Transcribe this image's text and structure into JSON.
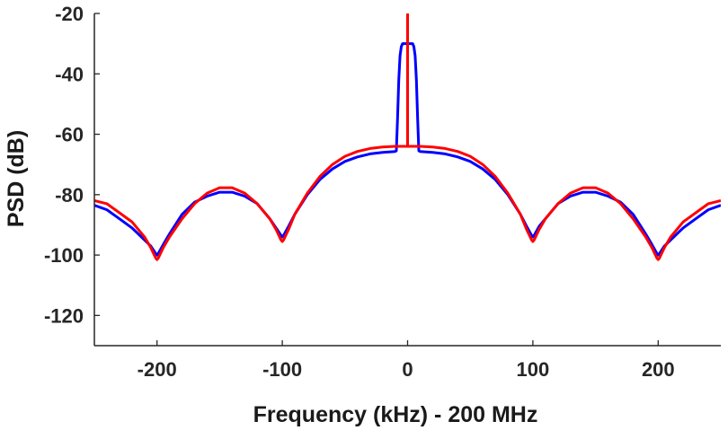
{
  "chart_data": {
    "type": "line",
    "title": "",
    "xlabel": "Frequency (kHz) - 200 MHz",
    "ylabel": "PSD (dB)",
    "xlim": [
      -250,
      250
    ],
    "ylim": [
      -130,
      -20
    ],
    "xticks": [
      -200,
      -100,
      0,
      100,
      200
    ],
    "yticks": [
      -20,
      -40,
      -60,
      -80,
      -100,
      -120
    ],
    "xtick_labels": [
      "-200",
      "-100",
      "0",
      "100",
      "200"
    ],
    "ytick_labels": [
      "-20",
      "-40",
      "-60",
      "-80",
      "-100",
      "-120"
    ],
    "grid": false,
    "series": [
      {
        "name": "red",
        "color": "#ff0000",
        "x": [
          -250,
          -240,
          -230,
          -220,
          -210,
          -205,
          -201,
          -200,
          -199,
          -195,
          -190,
          -180,
          -170,
          -160,
          -150,
          -140,
          -130,
          -120,
          -110,
          -105,
          -101,
          -100,
          -99,
          -95,
          -90,
          -80,
          -70,
          -60,
          -50,
          -40,
          -30,
          -20,
          -10,
          0,
          10,
          20,
          30,
          40,
          50,
          60,
          70,
          80,
          90,
          95,
          99,
          100,
          101,
          105,
          110,
          120,
          130,
          140,
          150,
          160,
          170,
          180,
          190,
          195,
          199,
          200,
          201,
          205,
          210,
          220,
          230,
          240,
          250
        ],
        "values": [
          -82,
          -83,
          -86,
          -89,
          -94,
          -97.5,
          -101,
          -101.5,
          -101,
          -97.5,
          -94,
          -88,
          -83,
          -79.5,
          -77.7,
          -77.7,
          -79.5,
          -83,
          -88,
          -91.5,
          -95,
          -95.5,
          -95,
          -91.5,
          -86.5,
          -79.5,
          -74,
          -70,
          -67.3,
          -65.7,
          -64.7,
          -64.2,
          -64,
          -64,
          -64,
          -64.2,
          -64.7,
          -65.7,
          -67.3,
          -70,
          -74,
          -79.5,
          -86.5,
          -91.5,
          -95,
          -95.5,
          -95,
          -91.5,
          -88,
          -83,
          -79.5,
          -77.7,
          -77.7,
          -79.5,
          -83,
          -88,
          -94,
          -97.5,
          -101,
          -101.5,
          -101,
          -97.5,
          -94,
          -89,
          -86,
          -83,
          -82
        ],
        "spike": {
          "x": 0,
          "from": -64,
          "to": -20
        }
      },
      {
        "name": "blue",
        "color": "#0000ff",
        "x": [
          -250,
          -240,
          -230,
          -220,
          -210,
          -205,
          -201,
          -200,
          -199,
          -195,
          -190,
          -180,
          -170,
          -160,
          -150,
          -140,
          -130,
          -120,
          -110,
          -105,
          -101,
          -100,
          -99,
          -95,
          -90,
          -80,
          -70,
          -60,
          -50,
          -40,
          -30,
          -20,
          -10,
          -9,
          -8,
          -7,
          -6,
          -5,
          -4,
          -2,
          0,
          2,
          4,
          5,
          6,
          7,
          8,
          9,
          10,
          20,
          30,
          40,
          50,
          60,
          70,
          80,
          90,
          95,
          99,
          100,
          101,
          105,
          110,
          120,
          130,
          140,
          150,
          160,
          170,
          180,
          190,
          195,
          199,
          200,
          201,
          205,
          210,
          220,
          230,
          240,
          250
        ],
        "values": [
          -83.5,
          -85,
          -88,
          -91,
          -95,
          -97,
          -99.5,
          -100,
          -99.5,
          -96.5,
          -93,
          -86.5,
          -82.5,
          -80.5,
          -79.2,
          -79.2,
          -80.5,
          -83,
          -88,
          -91,
          -93.5,
          -94,
          -93.5,
          -90.5,
          -86.5,
          -80,
          -75,
          -71.5,
          -69,
          -67.5,
          -66.5,
          -66,
          -65.7,
          -65.5,
          -55,
          -42,
          -34,
          -31,
          -30,
          -30,
          -30,
          -30,
          -30,
          -31,
          -34,
          -42,
          -55,
          -65.5,
          -65.7,
          -66,
          -66.5,
          -67.5,
          -69,
          -71.5,
          -75,
          -80,
          -86.5,
          -90.5,
          -93.5,
          -94,
          -93.5,
          -90.5,
          -88,
          -83,
          -80.5,
          -79.2,
          -79.2,
          -80.5,
          -82.5,
          -86.5,
          -93,
          -96.5,
          -99.5,
          -100,
          -99.5,
          -97,
          -95,
          -91,
          -88,
          -85,
          -83.5
        ]
      }
    ]
  }
}
